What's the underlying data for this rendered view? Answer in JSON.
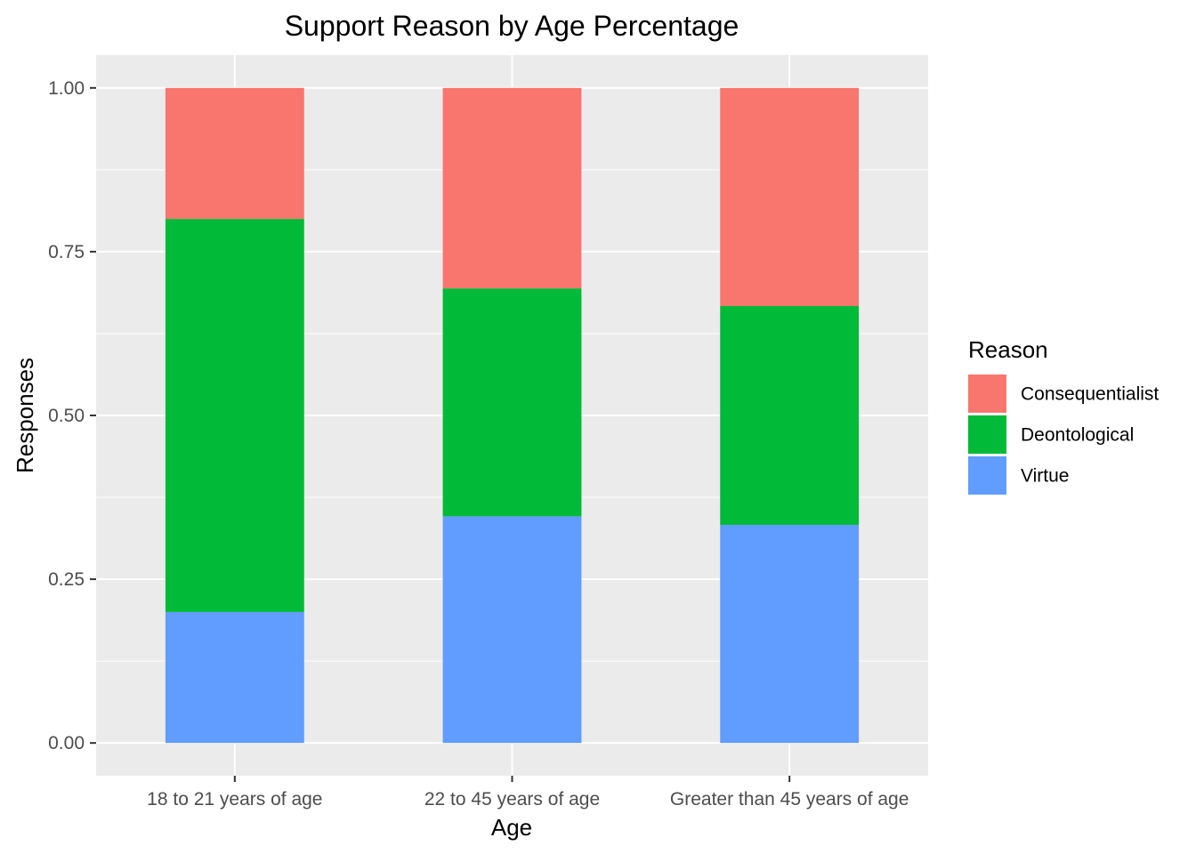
{
  "chart_data": {
    "type": "bar",
    "stacked": true,
    "title": "Support Reason by Age Percentage",
    "xlabel": "Age",
    "ylabel": "Responses",
    "categories": [
      "18 to 21 years of age",
      "22 to 45 years of age",
      "Greater than 45 years of age"
    ],
    "series": [
      {
        "name": "Virtue",
        "color": "#619CFF",
        "values": [
          0.2,
          0.346,
          0.333
        ]
      },
      {
        "name": "Deontological",
        "color": "#00BA38",
        "values": [
          0.6,
          0.348,
          0.334
        ]
      },
      {
        "name": "Consequentialist",
        "color": "#F8766D",
        "values": [
          0.2,
          0.306,
          0.333
        ]
      }
    ],
    "ylim": [
      -0.05,
      1.05
    ],
    "yticks": [
      0.0,
      0.25,
      0.5,
      0.75,
      1.0
    ],
    "ytick_labels": [
      "0.00",
      "0.25",
      "0.50",
      "0.75",
      "1.00"
    ],
    "grid": true,
    "legend": {
      "title": "Reason",
      "position": "right",
      "entries": [
        "Consequentialist",
        "Deontological",
        "Virtue"
      ]
    },
    "colors": {
      "panel_background": "#EBEBEB",
      "gridline": "#FFFFFF",
      "tick_text": "#4D4D4D",
      "tick_mark": "#333333"
    }
  }
}
